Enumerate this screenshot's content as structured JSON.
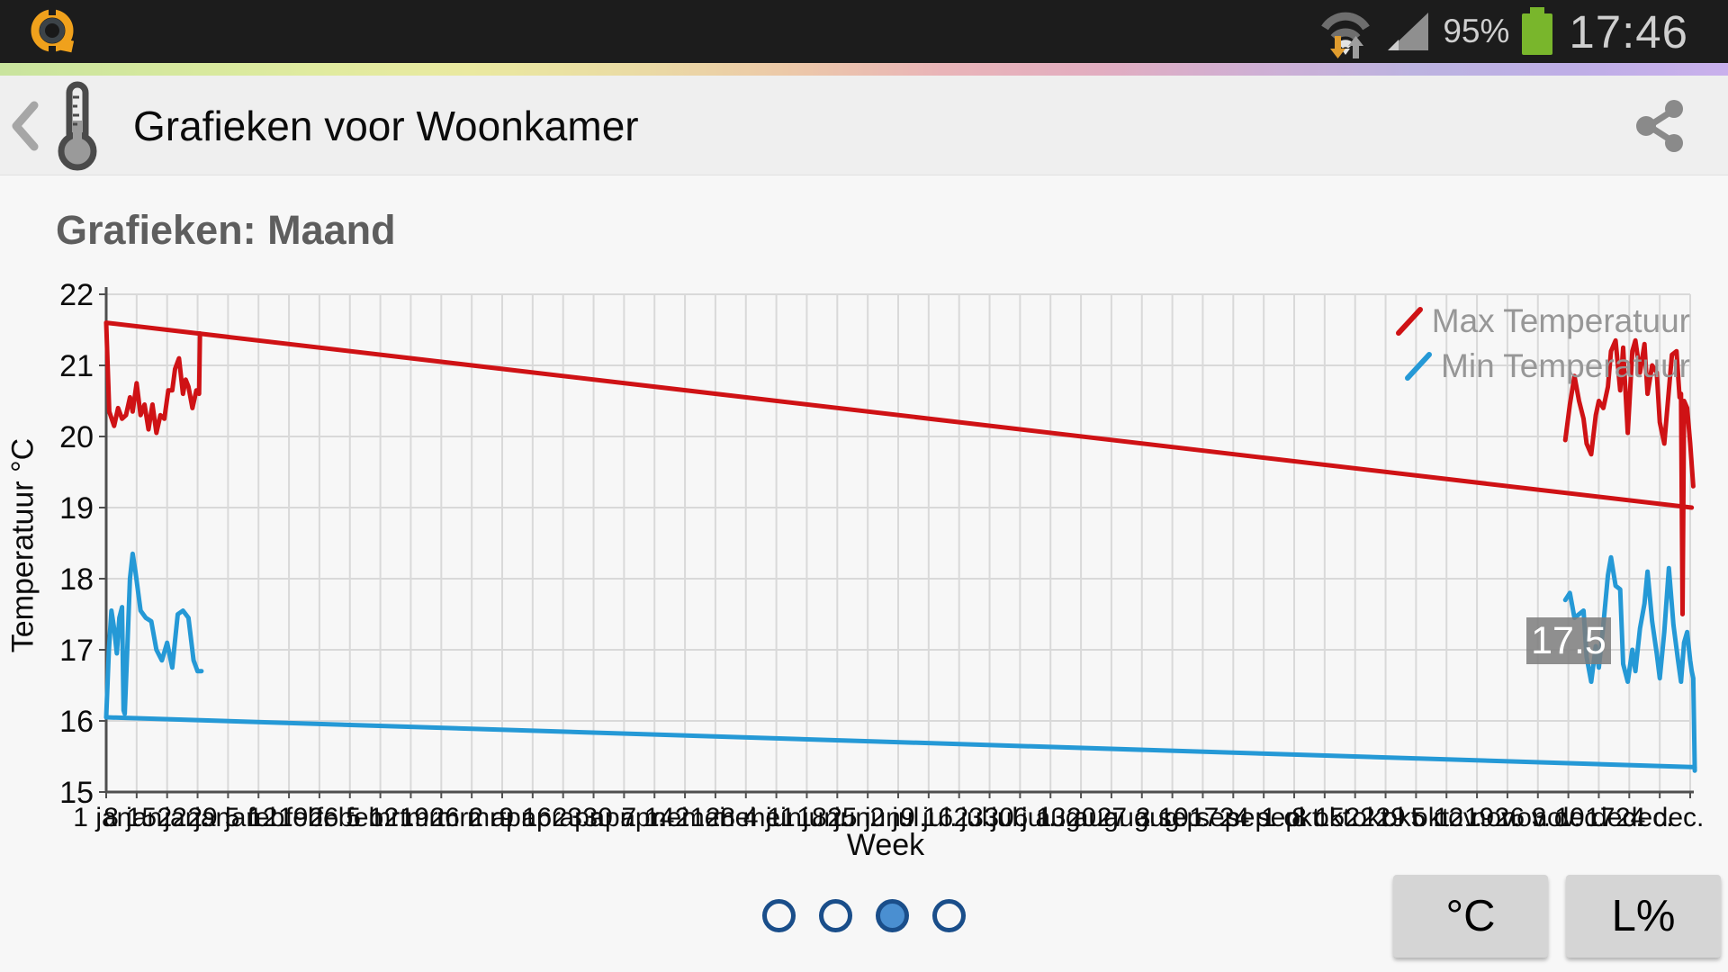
{
  "status_bar": {
    "time": "17:46",
    "battery_percent": "95%"
  },
  "header": {
    "title": "Grafieken voor Woonkamer"
  },
  "section": {
    "title": "Grafieken: Maand"
  },
  "chart_data": {
    "type": "line",
    "title": "Grafieken: Maand",
    "xlabel": "Week",
    "ylabel": "Temperatuur °C",
    "ylim": [
      15,
      22
    ],
    "yticks": [
      22,
      21,
      20,
      19,
      18,
      17,
      16,
      15
    ],
    "x_weeks": 52,
    "grid": true,
    "legend_position": "top-right",
    "xtick_labels": [
      "1 jan.",
      "8 jan.",
      "15 jan.",
      "22 jan.",
      "29 jan.",
      "5 feb.",
      "12 feb.",
      "19 feb.",
      "26 feb.",
      "5 mrt.",
      "12 mrt.",
      "19 mrt.",
      "26 mrt.",
      "2 apr.",
      "9 apr.",
      "16 apr.",
      "23 apr.",
      "30 apr.",
      "7 mei",
      "14 mei",
      "21 mei",
      "28 mei",
      "4 jun.",
      "11 jun.",
      "18 jun.",
      "25 jun.",
      "2 jul.",
      "9 jul.",
      "16 jul.",
      "23 jul.",
      "30 jul.",
      "6 aug.",
      "13 aug.",
      "20 aug.",
      "27 aug.",
      "3 sep.",
      "10 sep.",
      "17 sep.",
      "24 sep.",
      "1 okt.",
      "8 okt.",
      "15 okt.",
      "22 okt.",
      "29 okt.",
      "5 nov.",
      "12 nov.",
      "19 nov.",
      "26 nov.",
      "3 dec.",
      "10 dec.",
      "17 dec.",
      "24 dec."
    ],
    "tooltip": {
      "value": "17.5"
    },
    "series": [
      {
        "name": "Max Temperatuur",
        "color": "#cf1215",
        "data_name": "max-temperature-line",
        "segments": [
          [
            [
              0,
              21.6
            ],
            [
              0.1,
              20.35
            ],
            [
              0.26,
              20.15
            ],
            [
              0.39,
              20.4
            ],
            [
              0.52,
              20.25
            ],
            [
              0.65,
              20.3
            ],
            [
              0.78,
              20.55
            ],
            [
              0.87,
              20.35
            ],
            [
              1.0,
              20.75
            ],
            [
              1.13,
              20.3
            ],
            [
              1.26,
              20.45
            ],
            [
              1.39,
              20.1
            ],
            [
              1.52,
              20.45
            ],
            [
              1.65,
              20.05
            ],
            [
              1.78,
              20.3
            ],
            [
              1.91,
              20.25
            ],
            [
              2.04,
              20.65
            ],
            [
              2.17,
              20.65
            ],
            [
              2.26,
              20.95
            ],
            [
              2.39,
              21.1
            ],
            [
              2.52,
              20.6
            ],
            [
              2.61,
              20.8
            ],
            [
              2.7,
              20.7
            ],
            [
              2.83,
              20.4
            ],
            [
              2.96,
              20.65
            ],
            [
              3.05,
              20.6
            ],
            [
              3.08,
              21.45
            ]
          ],
          [
            [
              0,
              21.6
            ],
            [
              52.05,
              19.0
            ]
          ],
          [
            [
              47.9,
              19.95
            ],
            [
              48.05,
              20.45
            ],
            [
              48.2,
              20.85
            ],
            [
              48.35,
              20.5
            ],
            [
              48.5,
              20.25
            ],
            [
              48.6,
              19.9
            ],
            [
              48.75,
              19.75
            ],
            [
              48.9,
              20.3
            ],
            [
              49.0,
              20.5
            ],
            [
              49.15,
              20.4
            ],
            [
              49.3,
              20.7
            ],
            [
              49.4,
              21.2
            ],
            [
              49.55,
              21.35
            ],
            [
              49.7,
              20.65
            ],
            [
              49.8,
              21.25
            ],
            [
              49.95,
              20.05
            ],
            [
              50.1,
              21.2
            ],
            [
              50.2,
              21.35
            ],
            [
              50.35,
              20.9
            ],
            [
              50.5,
              21.3
            ],
            [
              50.6,
              20.6
            ],
            [
              50.75,
              21.0
            ],
            [
              50.9,
              20.9
            ],
            [
              51.0,
              20.2
            ],
            [
              51.15,
              19.9
            ],
            [
              51.3,
              20.65
            ],
            [
              51.4,
              21.15
            ],
            [
              51.55,
              21.2
            ],
            [
              51.65,
              20.55
            ],
            [
              51.7,
              20.6
            ],
            [
              51.75,
              17.5
            ],
            [
              51.8,
              20.5
            ],
            [
              51.9,
              20.4
            ],
            [
              52.0,
              19.9
            ],
            [
              52.1,
              19.3
            ]
          ]
        ]
      },
      {
        "name": "Min Temperatuur",
        "color": "#2599d6",
        "data_name": "min-temperature-line",
        "segments": [
          [
            [
              0,
              16.05
            ],
            [
              0.09,
              17.0
            ],
            [
              0.17,
              17.55
            ],
            [
              0.26,
              17.3
            ],
            [
              0.35,
              16.95
            ],
            [
              0.43,
              17.45
            ],
            [
              0.52,
              17.6
            ],
            [
              0.57,
              16.15
            ],
            [
              0.61,
              16.1
            ],
            [
              0.7,
              17.1
            ],
            [
              0.78,
              18.0
            ],
            [
              0.87,
              18.35
            ],
            [
              0.96,
              18.1
            ],
            [
              1.13,
              17.55
            ],
            [
              1.3,
              17.45
            ],
            [
              1.48,
              17.4
            ],
            [
              1.65,
              17.0
            ],
            [
              1.83,
              16.85
            ],
            [
              2.0,
              17.1
            ],
            [
              2.17,
              16.75
            ],
            [
              2.35,
              17.5
            ],
            [
              2.52,
              17.55
            ],
            [
              2.7,
              17.45
            ],
            [
              2.87,
              16.85
            ],
            [
              3.0,
              16.7
            ],
            [
              3.13,
              16.7
            ]
          ],
          [
            [
              0,
              16.05
            ],
            [
              52.15,
              15.35
            ]
          ],
          [
            [
              47.9,
              17.7
            ],
            [
              48.05,
              17.8
            ],
            [
              48.2,
              17.45
            ],
            [
              48.35,
              17.5
            ],
            [
              48.5,
              17.55
            ],
            [
              48.6,
              16.9
            ],
            [
              48.75,
              16.55
            ],
            [
              48.9,
              17.05
            ],
            [
              49.0,
              16.75
            ],
            [
              49.15,
              17.35
            ],
            [
              49.3,
              18.05
            ],
            [
              49.4,
              18.3
            ],
            [
              49.55,
              17.9
            ],
            [
              49.7,
              17.85
            ],
            [
              49.8,
              16.8
            ],
            [
              49.95,
              16.55
            ],
            [
              50.1,
              17.0
            ],
            [
              50.2,
              16.7
            ],
            [
              50.35,
              17.3
            ],
            [
              50.5,
              17.65
            ],
            [
              50.6,
              18.1
            ],
            [
              50.75,
              17.4
            ],
            [
              50.9,
              16.95
            ],
            [
              51.0,
              16.6
            ],
            [
              51.15,
              17.25
            ],
            [
              51.3,
              18.15
            ],
            [
              51.45,
              17.35
            ],
            [
              51.6,
              16.85
            ],
            [
              51.7,
              16.55
            ],
            [
              51.8,
              17.1
            ],
            [
              51.9,
              17.25
            ],
            [
              52.0,
              16.85
            ],
            [
              52.05,
              16.7
            ],
            [
              52.1,
              16.6
            ],
            [
              52.15,
              15.3
            ]
          ]
        ]
      }
    ]
  },
  "pagination": {
    "count": 4,
    "active_index": 2
  },
  "buttons": {
    "temperature": "°C",
    "humidity": "L%"
  }
}
